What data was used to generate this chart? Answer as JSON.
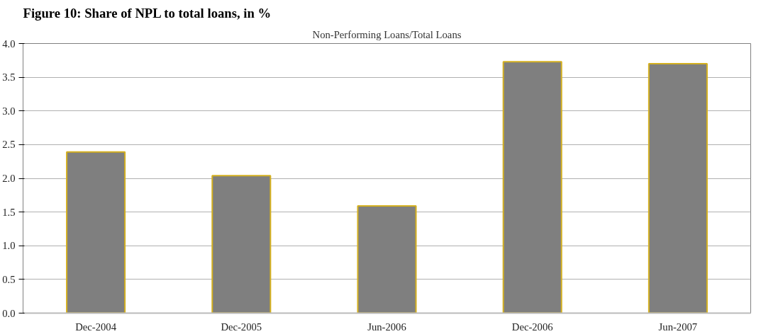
{
  "chart_data": {
    "type": "bar",
    "title": "Figure 10: Share of NPL to total loans, in %",
    "subtitle": "Non-Performing Loans/Total Loans",
    "categories": [
      "Dec-2004",
      "Dec-2005",
      "Jun-2006",
      "Dec-2006",
      "Jun-2007"
    ],
    "values": [
      2.39,
      2.04,
      1.59,
      3.73,
      3.7
    ],
    "color": "#7f7f7f",
    "ylim": [
      0,
      4
    ],
    "yticks": [
      {
        "value": 0,
        "label": "0.0"
      },
      {
        "value": 0.5,
        "label": "0.5"
      },
      {
        "value": 1,
        "label": "1.0"
      },
      {
        "value": 1.5,
        "label": "1.5"
      },
      {
        "value": 2,
        "label": "2.0"
      },
      {
        "value": 2.5,
        "label": "2.5"
      },
      {
        "value": 3,
        "label": "3.0"
      },
      {
        "value": 3.5,
        "label": "3.5"
      },
      {
        "value": 4,
        "label": "4.0"
      }
    ],
    "grid": "y"
  }
}
